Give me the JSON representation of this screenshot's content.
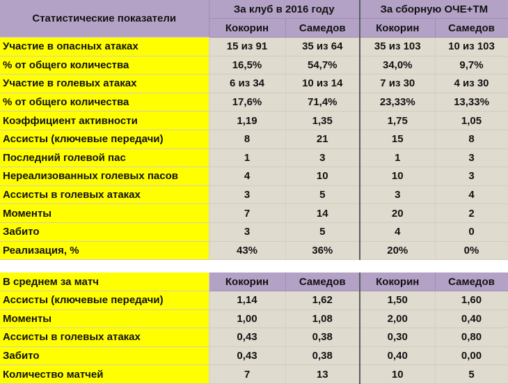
{
  "table1": {
    "title": "Статистические показатели",
    "group_club": "За клуб в 2016 году",
    "group_national": "За сборную ОЧЕ+ТМ",
    "players": [
      "Кокорин",
      "Самедов",
      "Кокорин",
      "Самедов"
    ],
    "rows": [
      {
        "label": "Участие в опасных атаках",
        "values": [
          "15 из 91",
          "35 из 64",
          "35 из 103",
          "10 из 103"
        ]
      },
      {
        "label": "% от общего количества",
        "values": [
          "16,5%",
          "54,7%",
          "34,0%",
          "9,7%"
        ]
      },
      {
        "label": "Участие в голевых атаках",
        "values": [
          "6 из 34",
          "10 из 14",
          "7 из 30",
          "4 из 30"
        ]
      },
      {
        "label": "% от общего количества",
        "values": [
          "17,6%",
          "71,4%",
          "23,33%",
          "13,33%"
        ]
      },
      {
        "label": "Коэффициент активности",
        "values": [
          "1,19",
          "1,35",
          "1,75",
          "1,05"
        ]
      },
      {
        "label": "Ассисты (ключевые передачи)",
        "values": [
          "8",
          "21",
          "15",
          "8"
        ]
      },
      {
        "label": "Последний голевой пас",
        "values": [
          "1",
          "3",
          "1",
          "3"
        ]
      },
      {
        "label": "Нереализованных голевых пасов",
        "values": [
          "4",
          "10",
          "10",
          "3"
        ]
      },
      {
        "label": "Ассисты в голевых атаках",
        "values": [
          "3",
          "5",
          "3",
          "4"
        ]
      },
      {
        "label": "Моменты",
        "values": [
          "7",
          "14",
          "20",
          "2"
        ]
      },
      {
        "label": "Забито",
        "values": [
          "3",
          "5",
          "4",
          "0"
        ]
      },
      {
        "label": "Реализация, %",
        "values": [
          "43%",
          "36%",
          "20%",
          "0%"
        ]
      }
    ]
  },
  "table2": {
    "title": "В среднем за  матч",
    "players": [
      "Кокорин",
      "Самедов",
      "Кокорин",
      "Самедов"
    ],
    "rows": [
      {
        "label": "Ассисты (ключевые передачи)",
        "values": [
          "1,14",
          "1,62",
          "1,50",
          "1,60"
        ]
      },
      {
        "label": "Моменты",
        "values": [
          "1,00",
          "1,08",
          "2,00",
          "0,40"
        ]
      },
      {
        "label": "Ассисты в голевых атаках",
        "values": [
          "0,43",
          "0,38",
          "0,30",
          "0,80"
        ]
      },
      {
        "label": "Забито",
        "values": [
          "0,43",
          "0,38",
          "0,40",
          "0,00"
        ]
      },
      {
        "label": "Количество матчей",
        "values": [
          "7",
          "13",
          "10",
          "5"
        ]
      }
    ]
  },
  "colors": {
    "label_bg": "#ffff00",
    "header_bg": "#b3a2c6",
    "value_bg": "#e0dbcf"
  }
}
